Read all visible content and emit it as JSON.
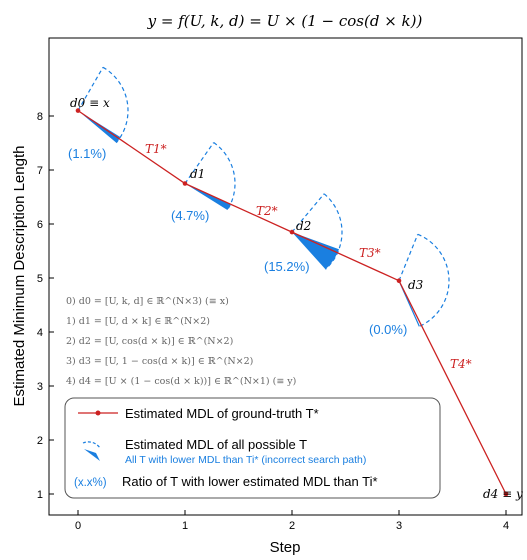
{
  "chart_data": {
    "type": "line",
    "title": "y = f(U, k, d) = U × (1 − cos(d × k))",
    "xlabel": "Step",
    "ylabel": "Estimated Minimum Description Length",
    "x_ticks": [
      "0",
      "1",
      "2",
      "3",
      "4"
    ],
    "y_ticks": [
      "1",
      "2",
      "3",
      "4",
      "5",
      "6",
      "7",
      "8"
    ],
    "xlim": [
      -0.3,
      4.3
    ],
    "ylim": [
      0.6,
      9.0
    ],
    "grid": false,
    "series": [
      {
        "name": "Estimated MDL of ground-truth T*",
        "x": [
          0,
          1,
          2,
          3,
          4
        ],
        "y": [
          8.1,
          6.75,
          5.85,
          4.95,
          1.0
        ]
      }
    ],
    "point_labels": [
      "d0 ≡ x",
      "d1",
      "d2",
      "d3",
      "d4 ≡ y"
    ],
    "segment_labels": [
      "T1*",
      "T2*",
      "T3*",
      "T4*"
    ],
    "ratio_labels": [
      "(1.1%)",
      "(4.7%)",
      "(15.2%)",
      "(0.0%)"
    ],
    "ratios": [
      1.1,
      4.7,
      15.2,
      0.0
    ],
    "annotations": [
      "0) d0 = [U, k, d] ∈ ℝ^(N×3) (≡ x)",
      "1) d1 = [U, d × k] ∈ ℝ^(N×2)",
      "2) d2 = [U, cos(d × k)] ∈ ℝ^(N×2)",
      "3) d3 = [U, 1 − cos(d × k)] ∈ ℝ^(N×2)",
      "4) d4 = [U × (1 − cos(d × k))] ∈ ℝ^(N×1) (≡ y)"
    ],
    "legend": {
      "placement": "lower-left",
      "entries": [
        "Estimated MDL of ground-truth T*",
        "Estimated MDL of all possible T",
        "All T with lower MDL than Ti* (incorrect search path)",
        "Ratio of T with lower estimated MDL than Ti*"
      ],
      "ratio_marker": "(x.x%)"
    },
    "colors": {
      "line": "#cc2222",
      "fan": "#1a7fe0",
      "text_gray": "#666666",
      "axis": "#000000"
    }
  }
}
